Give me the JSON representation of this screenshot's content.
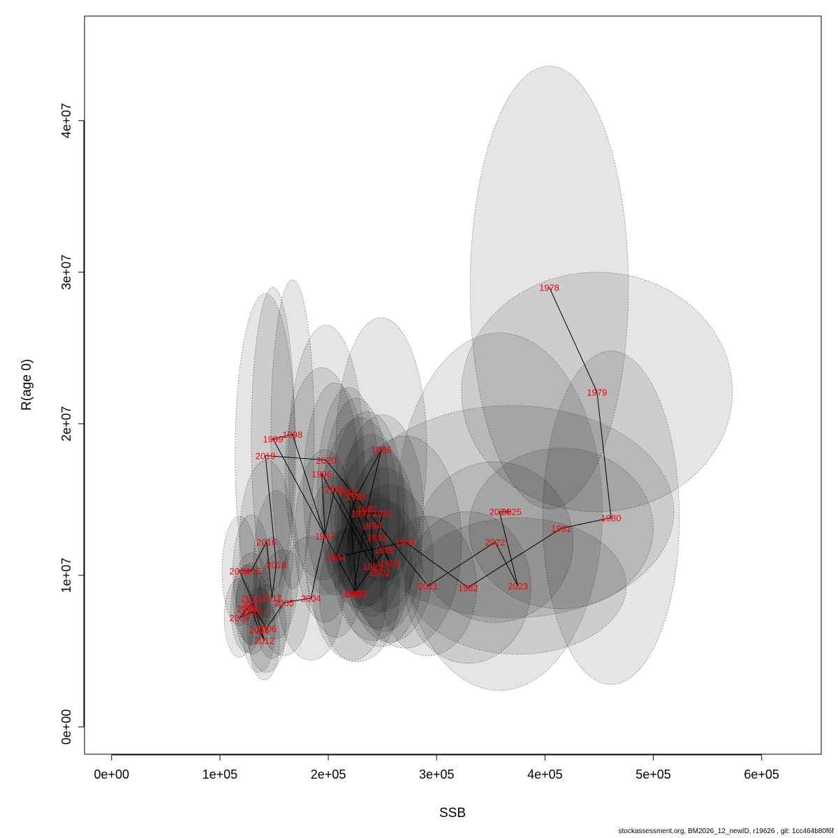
{
  "chart_data": {
    "type": "scatter",
    "xlabel": "SSB",
    "ylabel": "R(age 0)",
    "xlim": [
      -25000,
      655000
    ],
    "ylim": [
      -1800000,
      46900000
    ],
    "x_ticks": [
      0,
      100000,
      200000,
      300000,
      400000,
      500000,
      600000
    ],
    "x_tick_labels": [
      "0e+00",
      "1e+05",
      "2e+05",
      "3e+05",
      "4e+05",
      "5e+05",
      "6e+05"
    ],
    "y_ticks": [
      0,
      10000000,
      20000000,
      30000000,
      40000000
    ],
    "y_tick_labels": [
      "0e+00",
      "1e+07",
      "2e+07",
      "3e+07",
      "4e+07"
    ],
    "grid": false,
    "line_color": "#000000",
    "label_color": "#ff0000",
    "ellipse_fill": "#000000",
    "ellipse_stroke": "#555555",
    "points": [
      {
        "year": "1978",
        "x": 404000,
        "y": 29000000,
        "rx": 73000,
        "ry": 14600000
      },
      {
        "year": "1979",
        "x": 448000,
        "y": 22100000,
        "rx": 125000,
        "ry": 7900000
      },
      {
        "year": "1980",
        "x": 461000,
        "y": 13800000,
        "rx": 63000,
        "ry": 11000000
      },
      {
        "year": "1981",
        "x": 415000,
        "y": 13100000,
        "rx": 85000,
        "ry": 5300000
      },
      {
        "year": "1982",
        "x": 329000,
        "y": 9200000,
        "rx": 58000,
        "ry": 5000000
      },
      {
        "year": "1983",
        "x": 271000,
        "y": 12200000,
        "rx": 52000,
        "ry": 7000000
      },
      {
        "year": "1984",
        "x": 207000,
        "y": 11200000,
        "rx": 28000,
        "ry": 5300000
      },
      {
        "year": "1985",
        "x": 226000,
        "y": 15200000,
        "rx": 30000,
        "ry": 6500000
      },
      {
        "year": "1986",
        "x": 249000,
        "y": 18300000,
        "rx": 42000,
        "ry": 8700000
      },
      {
        "year": "1987",
        "x": 236000,
        "y": 14400000,
        "rx": 34000,
        "ry": 6400000
      },
      {
        "year": "1988",
        "x": 223000,
        "y": 8800000,
        "rx": 31000,
        "ry": 4400000
      },
      {
        "year": "1989",
        "x": 252000,
        "y": 11700000,
        "rx": 34000,
        "ry": 5400000
      },
      {
        "year": "1990",
        "x": 257000,
        "y": 10800000,
        "rx": 40000,
        "ry": 5200000
      },
      {
        "year": "1991",
        "x": 245000,
        "y": 12500000,
        "rx": 37000,
        "ry": 6000000
      },
      {
        "year": "1992",
        "x": 250000,
        "y": 14100000,
        "rx": 38000,
        "ry": 6500000
      },
      {
        "year": "1993",
        "x": 230000,
        "y": 14100000,
        "rx": 36000,
        "ry": 6300000
      },
      {
        "year": "1994",
        "x": 240000,
        "y": 13300000,
        "rx": 34000,
        "ry": 6000000
      },
      {
        "year": "1995",
        "x": 241000,
        "y": 10600000,
        "rx": 36000,
        "ry": 4900000
      },
      {
        "year": "1996",
        "x": 194000,
        "y": 16700000,
        "rx": 34000,
        "ry": 7000000
      },
      {
        "year": "1997",
        "x": 197000,
        "y": 12600000,
        "rx": 28000,
        "ry": 5700000
      },
      {
        "year": "1998",
        "x": 167000,
        "y": 19300000,
        "rx": 20000,
        "ry": 10200000
      },
      {
        "year": "1999",
        "x": 149000,
        "y": 19000000,
        "rx": 20000,
        "ry": 10000000
      },
      {
        "year": "2000",
        "x": 226000,
        "y": 8800000,
        "rx": 40000,
        "ry": 4500000
      },
      {
        "year": "2001",
        "x": 219000,
        "y": 15500000,
        "rx": 29000,
        "ry": 6900000
      },
      {
        "year": "2002",
        "x": 248000,
        "y": 10200000,
        "rx": 39000,
        "ry": 4900000
      },
      {
        "year": "2003",
        "x": 206000,
        "y": 15700000,
        "rx": 29000,
        "ry": 7000000
      },
      {
        "year": "2004",
        "x": 184000,
        "y": 8500000,
        "rx": 30000,
        "ry": 4100000
      },
      {
        "year": "2005",
        "x": 159000,
        "y": 8200000,
        "rx": 24000,
        "ry": 3500000
      },
      {
        "year": "2006",
        "x": 143000,
        "y": 6500000,
        "rx": 18000,
        "ry": 2900000
      },
      {
        "year": "2007",
        "x": 129000,
        "y": 8100000,
        "rx": 14000,
        "ry": 2700000
      },
      {
        "year": "2008",
        "x": 125000,
        "y": 7800000,
        "rx": 15000,
        "ry": 2900000
      },
      {
        "year": "2009",
        "x": 118000,
        "y": 7200000,
        "rx": 14000,
        "ry": 2600000
      },
      {
        "year": "2010",
        "x": 130000,
        "y": 7600000,
        "rx": 16000,
        "ry": 2800000
      },
      {
        "year": "2011",
        "x": 136000,
        "y": 6400000,
        "rx": 15000,
        "ry": 2800000
      },
      {
        "year": "2012",
        "x": 141000,
        "y": 5700000,
        "rx": 14000,
        "ry": 2600000
      },
      {
        "year": "2013",
        "x": 129000,
        "y": 8500000,
        "rx": 17000,
        "ry": 3000000
      },
      {
        "year": "2014",
        "x": 118000,
        "y": 10300000,
        "rx": 16000,
        "ry": 3600000
      },
      {
        "year": "2015",
        "x": 129000,
        "y": 10300000,
        "rx": 17000,
        "ry": 3700000
      },
      {
        "year": "2016",
        "x": 143000,
        "y": 12200000,
        "rx": 25000,
        "ry": 5400000
      },
      {
        "year": "2017",
        "x": 148000,
        "y": 8500000,
        "rx": 18000,
        "ry": 4000000
      },
      {
        "year": "2018",
        "x": 152000,
        "y": 10700000,
        "rx": 21000,
        "ry": 4900000
      },
      {
        "year": "2019",
        "x": 142000,
        "y": 17900000,
        "rx": 28000,
        "ry": 10700000
      },
      {
        "year": "2020",
        "x": 198000,
        "y": 17600000,
        "rx": 35000,
        "ry": 8900000
      },
      {
        "year": "2021",
        "x": 292000,
        "y": 9300000,
        "rx": 45000,
        "ry": 4600000
      },
      {
        "year": "2022",
        "x": 354000,
        "y": 12200000,
        "rx": 72000,
        "ry": 5300000
      },
      {
        "year": "2023",
        "x": 375000,
        "y": 9300000,
        "rx": 100000,
        "ry": 4500000
      },
      {
        "year": "2024",
        "x": 358000,
        "y": 14200000,
        "rx": 95000,
        "ry": 11800000
      },
      {
        "year": "2025",
        "x": 369000,
        "y": 14200000,
        "rx": 150000,
        "ry": 7000000
      }
    ]
  },
  "footer": {
    "text": "stockassessment.org, BM2026_12_newID, r19626 , git: 1cc464b80f6f"
  }
}
